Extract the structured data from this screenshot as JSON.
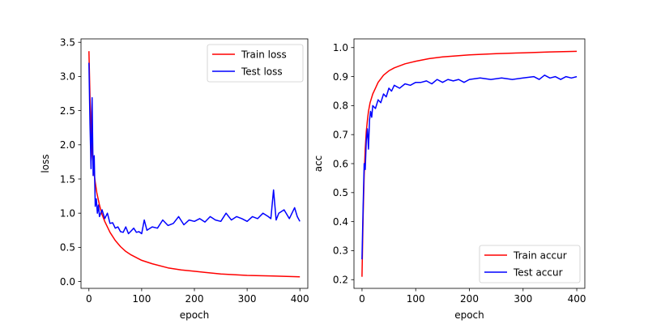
{
  "chart_data": [
    {
      "type": "line",
      "xlabel": "epoch",
      "ylabel": "loss",
      "xlim": [
        -15,
        415
      ],
      "ylim": [
        -0.1,
        3.55
      ],
      "xticks": [
        0,
        100,
        200,
        300,
        400
      ],
      "xtick_labels": [
        "0",
        "100",
        "200",
        "300",
        "400"
      ],
      "yticks": [
        0.0,
        0.5,
        1.0,
        1.5,
        2.0,
        2.5,
        3.0,
        3.5
      ],
      "ytick_labels": [
        "0.0",
        "0.5",
        "1.0",
        "1.5",
        "2.0",
        "2.5",
        "3.0",
        "3.5"
      ],
      "grid": false,
      "legend_position": "top-right",
      "series": [
        {
          "name": "Train loss",
          "color": "#ff0000",
          "x": [
            0,
            2,
            5,
            8,
            10,
            12,
            15,
            20,
            25,
            30,
            40,
            50,
            60,
            70,
            80,
            100,
            120,
            150,
            175,
            200,
            250,
            300,
            350,
            400
          ],
          "y": [
            3.37,
            2.7,
            2.05,
            1.72,
            1.57,
            1.45,
            1.3,
            1.12,
            0.98,
            0.88,
            0.72,
            0.6,
            0.51,
            0.44,
            0.39,
            0.31,
            0.26,
            0.2,
            0.17,
            0.15,
            0.11,
            0.09,
            0.08,
            0.07
          ]
        },
        {
          "name": "Test loss",
          "color": "#0000ff",
          "x": [
            0,
            2,
            4,
            6,
            8,
            10,
            12,
            14,
            16,
            18,
            20,
            25,
            30,
            35,
            40,
            45,
            50,
            55,
            60,
            65,
            70,
            75,
            80,
            85,
            90,
            95,
            100,
            105,
            110,
            120,
            130,
            140,
            150,
            160,
            170,
            180,
            190,
            200,
            210,
            220,
            230,
            240,
            250,
            260,
            270,
            280,
            290,
            300,
            310,
            320,
            330,
            340,
            345,
            350,
            355,
            360,
            370,
            380,
            390,
            395,
            400
          ],
          "y": [
            3.2,
            2.3,
            1.65,
            2.69,
            1.55,
            1.84,
            1.1,
            1.21,
            1.0,
            1.12,
            0.95,
            1.05,
            0.92,
            1.0,
            0.85,
            0.86,
            0.78,
            0.8,
            0.73,
            0.72,
            0.8,
            0.7,
            0.74,
            0.78,
            0.72,
            0.73,
            0.7,
            0.9,
            0.75,
            0.8,
            0.78,
            0.9,
            0.82,
            0.85,
            0.95,
            0.83,
            0.9,
            0.88,
            0.92,
            0.87,
            0.95,
            0.9,
            0.88,
            1.0,
            0.9,
            0.95,
            0.92,
            0.88,
            0.95,
            0.92,
            1.0,
            0.95,
            0.92,
            1.34,
            0.9,
            1.0,
            1.05,
            0.92,
            1.08,
            0.95,
            0.88
          ]
        }
      ]
    },
    {
      "type": "line",
      "xlabel": "epoch",
      "ylabel": "acc",
      "xlim": [
        -15,
        415
      ],
      "ylim": [
        0.17,
        1.03
      ],
      "xticks": [
        0,
        100,
        200,
        300,
        400
      ],
      "xtick_labels": [
        "0",
        "100",
        "200",
        "300",
        "400"
      ],
      "yticks": [
        0.2,
        0.3,
        0.4,
        0.5,
        0.6,
        0.7,
        0.8,
        0.9,
        1.0
      ],
      "ytick_labels": [
        "0.2",
        "0.3",
        "0.4",
        "0.5",
        "0.6",
        "0.7",
        "0.8",
        "0.9",
        "1.0"
      ],
      "grid": false,
      "legend_position": "bottom-right",
      "series": [
        {
          "name": "Train accur",
          "color": "#ff0000",
          "x": [
            0,
            2,
            4,
            6,
            8,
            10,
            12,
            15,
            20,
            25,
            30,
            40,
            50,
            60,
            70,
            80,
            100,
            125,
            150,
            200,
            250,
            300,
            350,
            400
          ],
          "y": [
            0.21,
            0.42,
            0.56,
            0.65,
            0.71,
            0.75,
            0.78,
            0.81,
            0.84,
            0.86,
            0.88,
            0.905,
            0.92,
            0.93,
            0.937,
            0.944,
            0.953,
            0.962,
            0.968,
            0.975,
            0.979,
            0.982,
            0.985,
            0.987
          ]
        },
        {
          "name": "Test accur",
          "color": "#0000ff",
          "x": [
            0,
            2,
            4,
            6,
            8,
            10,
            12,
            14,
            16,
            18,
            20,
            25,
            30,
            35,
            40,
            45,
            50,
            55,
            60,
            70,
            80,
            90,
            100,
            110,
            120,
            130,
            140,
            150,
            160,
            170,
            180,
            190,
            200,
            220,
            240,
            260,
            280,
            300,
            320,
            330,
            340,
            350,
            360,
            370,
            380,
            390,
            400
          ],
          "y": [
            0.27,
            0.45,
            0.6,
            0.58,
            0.68,
            0.72,
            0.65,
            0.75,
            0.78,
            0.76,
            0.8,
            0.79,
            0.82,
            0.81,
            0.84,
            0.83,
            0.86,
            0.85,
            0.87,
            0.86,
            0.875,
            0.87,
            0.88,
            0.88,
            0.885,
            0.875,
            0.89,
            0.88,
            0.89,
            0.885,
            0.89,
            0.88,
            0.89,
            0.895,
            0.89,
            0.895,
            0.89,
            0.895,
            0.9,
            0.89,
            0.905,
            0.895,
            0.9,
            0.89,
            0.9,
            0.895,
            0.9
          ]
        }
      ]
    }
  ]
}
